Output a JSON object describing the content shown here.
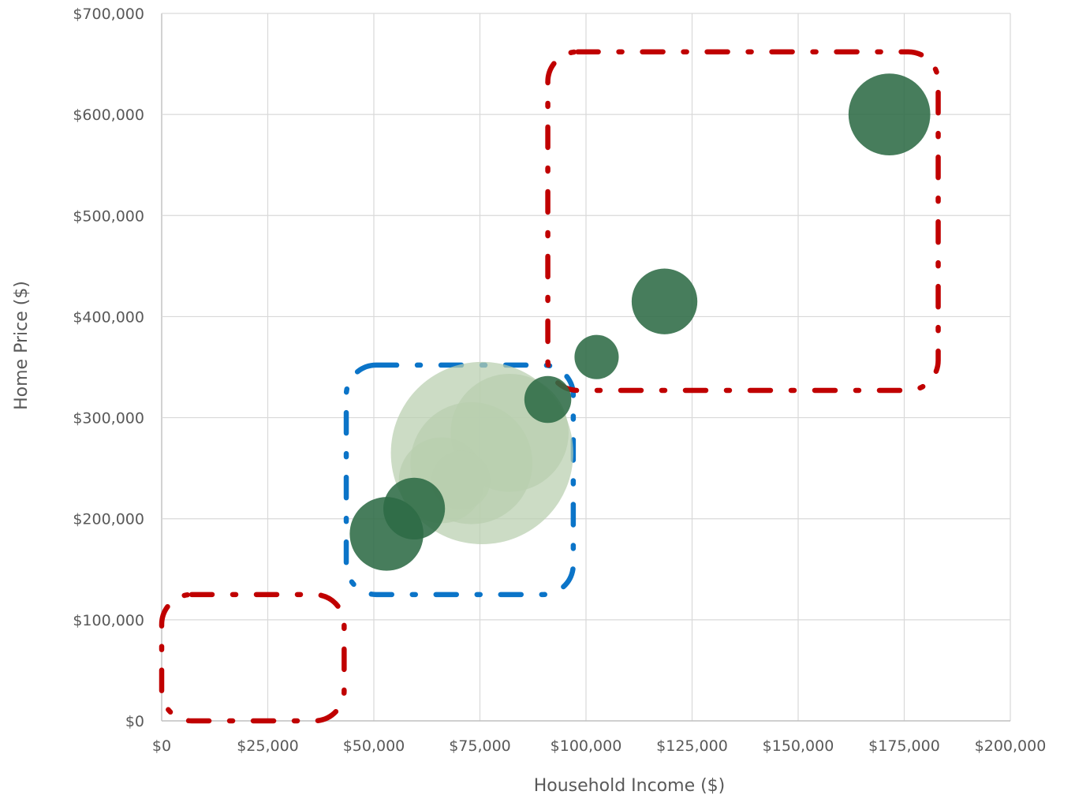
{
  "chart_data": {
    "type": "scatter",
    "subtype": "bubble",
    "xlabel": "Household Income ($)",
    "ylabel": "Home Price ($)",
    "xlim": [
      0,
      200000
    ],
    "ylim": [
      0,
      700000
    ],
    "x_ticks": [
      "$0",
      "$25,000",
      "$50,000",
      "$75,000",
      "$100,000",
      "$125,000",
      "$150,000",
      "$175,000",
      "$200,000"
    ],
    "y_ticks": [
      "$0",
      "$100,000",
      "$200,000",
      "$300,000",
      "$400,000",
      "$500,000",
      "$600,000",
      "$700,000"
    ],
    "grid": true,
    "legend": "none",
    "colors": {
      "dark_bubble": "#2e6b45",
      "darker_bubble": "#1f5a33",
      "light_bubble": "#b9cfae",
      "red_region": "#c00000",
      "blue_region": "#0b74c8"
    },
    "series": [
      {
        "shade": "light",
        "points": [
          {
            "x": 75500,
            "y": 265000,
            "size": 13.6
          },
          {
            "x": 73000,
            "y": 255000,
            "size": 9.1
          },
          {
            "x": 82000,
            "y": 285000,
            "size": 8.8
          },
          {
            "x": 66000,
            "y": 238000,
            "size": 6.4
          },
          {
            "x": 70500,
            "y": 238000,
            "size": 4.4
          }
        ]
      },
      {
        "shade": "dark",
        "points": [
          {
            "x": 53000,
            "y": 185000,
            "size": 5.5
          },
          {
            "x": 59500,
            "y": 210000,
            "size": 4.6
          },
          {
            "x": 91000,
            "y": 318000,
            "size": 3.5
          },
          {
            "x": 102500,
            "y": 360000,
            "size": 3.3
          },
          {
            "x": 118500,
            "y": 415000,
            "size": 4.9
          },
          {
            "x": 171500,
            "y": 600000,
            "size": 6.1
          }
        ]
      }
    ],
    "regions": [
      {
        "color": "red",
        "x": [
          0,
          43000
        ],
        "y": [
          0,
          125000
        ]
      },
      {
        "color": "blue",
        "x": [
          43500,
          97000
        ],
        "y": [
          125000,
          352000
        ]
      },
      {
        "color": "red",
        "x": [
          91000,
          183000
        ],
        "y": [
          327000,
          662000
        ]
      }
    ]
  }
}
